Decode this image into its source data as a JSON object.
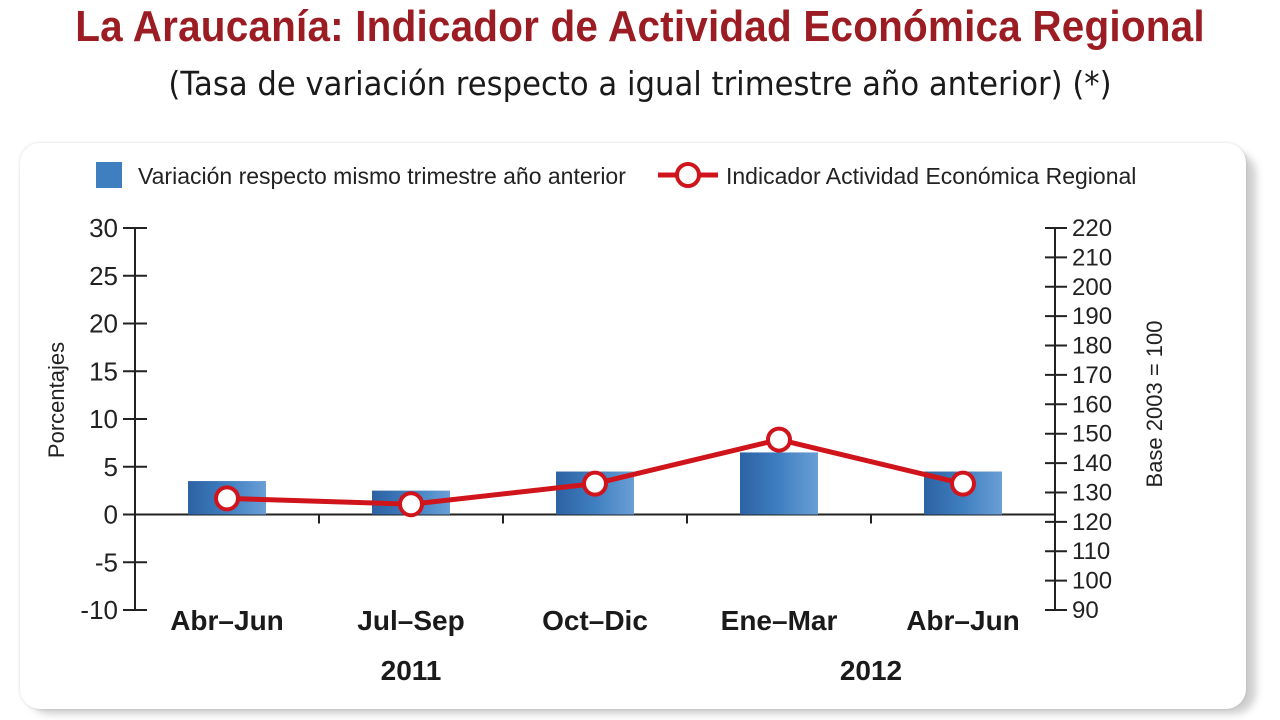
{
  "header": {
    "title": "La Araucanía: Indicador de Actividad Económica Regional",
    "subtitle": "(Tasa de variación respecto a igual trimestre año anterior) (*)"
  },
  "colors": {
    "title": "#9b1c22",
    "bar": "#3f7fc0",
    "line": "#d0141c",
    "marker_fill": "#ffffff"
  },
  "chart_data": {
    "type": "bar",
    "categories": [
      "Abr–Jun",
      "Jul–Sep",
      "Oct–Dic",
      "Ene–Mar",
      "Abr–Jun"
    ],
    "year_labels": [
      {
        "label": "2011",
        "category_index": 1
      },
      {
        "label": "2012",
        "category_index": 3.5
      }
    ],
    "series": [
      {
        "name": "Variación respecto mismo trimestre año anterior",
        "type": "bar",
        "axis": "left",
        "values": [
          3.5,
          2.5,
          4.5,
          6.5,
          4.5
        ]
      },
      {
        "name": "Indicador Actividad Económica Regional",
        "type": "line",
        "axis": "right",
        "values": [
          128,
          126,
          133,
          148,
          133
        ]
      }
    ],
    "ylabel": "Porcentajes",
    "ylabel_right": "Base 2003 = 100",
    "ylim": [
      -10,
      30
    ],
    "yticks": [
      30,
      25,
      20,
      15,
      10,
      5,
      0,
      -5,
      -10
    ],
    "ylim_right": [
      90,
      220
    ],
    "yticks_right": [
      220,
      210,
      200,
      190,
      180,
      170,
      160,
      150,
      140,
      130,
      120,
      110,
      100,
      90
    ],
    "legend_position": "top",
    "grid": false
  }
}
